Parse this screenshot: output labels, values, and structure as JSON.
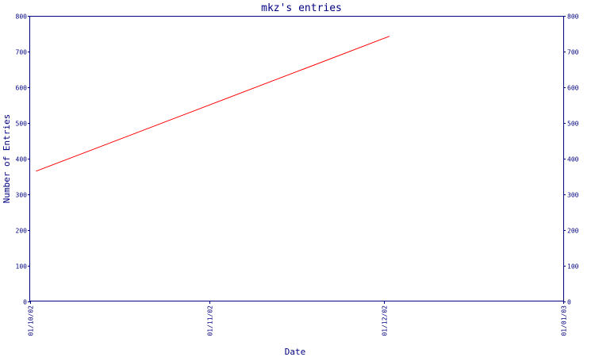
{
  "chart_data": {
    "type": "line",
    "title": "mkz's entries",
    "xlabel": "Date",
    "ylabel": "Number of Entries",
    "x_ticks": [
      "01/10/02",
      "01/11/02",
      "01/12/02",
      "01/01/03"
    ],
    "y_ticks": [
      "0",
      "100",
      "200",
      "300",
      "400",
      "500",
      "600",
      "700",
      "800"
    ],
    "ylim": [
      0,
      800
    ],
    "grid": false,
    "secondary_y_axis": true,
    "series": [
      {
        "x": [
          "2002-10-02",
          "2002-12-02"
        ],
        "values": [
          365,
          743
        ],
        "color": "#ff0000"
      }
    ],
    "axis_color": "#000080",
    "text_color": "#000080"
  }
}
